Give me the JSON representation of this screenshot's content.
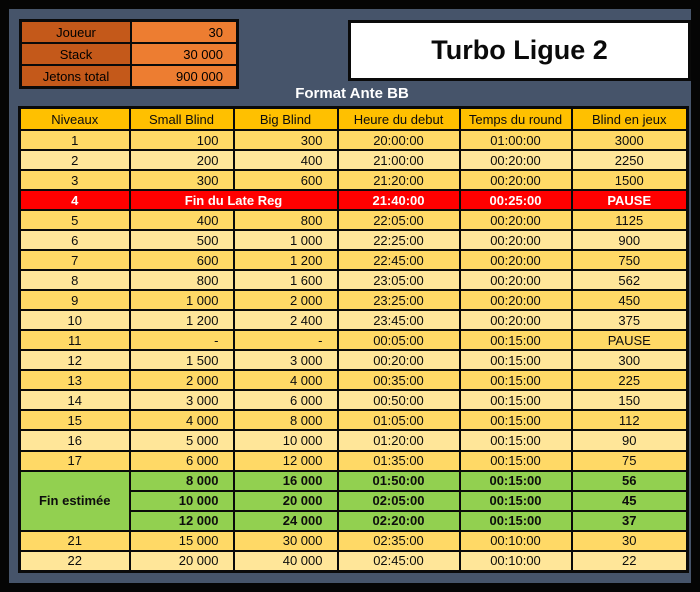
{
  "title": "Turbo Ligue 2",
  "subtitle": "Format Ante BB",
  "colors": {
    "background": "#46546A",
    "border": "#0a0a0a",
    "header_gold": "#FFC000",
    "row_dark": "#FFD966",
    "row_light": "#FFE699",
    "break_red": "#FF0000",
    "estimate_green": "#92D050",
    "info_label_orange": "#C4591A",
    "info_value_orange": "#ED7D31",
    "title_box_bg": "#FFFFFF"
  },
  "info_table": {
    "rows": [
      {
        "label": "Joueur",
        "value": "30"
      },
      {
        "label": "Stack",
        "value": "30 000"
      },
      {
        "label": "Jetons total",
        "value": "900 000"
      }
    ]
  },
  "blinds_table": {
    "headers": [
      "Niveaux",
      "Small Blind",
      "Big Blind",
      "Heure du debut",
      "Temps du round",
      "Blind en jeux"
    ],
    "rows": [
      {
        "level": "1",
        "style": "dark",
        "cells": [
          "100",
          "300",
          "20:00:00",
          "01:00:00",
          "3000"
        ]
      },
      {
        "level": "2",
        "style": "light",
        "cells": [
          "200",
          "400",
          "21:00:00",
          "00:20:00",
          "2250"
        ]
      },
      {
        "level": "3",
        "style": "dark",
        "cells": [
          "300",
          "600",
          "21:20:00",
          "00:20:00",
          "1500"
        ]
      },
      {
        "level": "4",
        "style": "break",
        "merged": "Fin du Late Reg",
        "cells": [
          "21:40:00",
          "00:25:00",
          "PAUSE"
        ]
      },
      {
        "level": "5",
        "style": "dark",
        "cells": [
          "400",
          "800",
          "22:05:00",
          "00:20:00",
          "1125"
        ]
      },
      {
        "level": "6",
        "style": "light",
        "cells": [
          "500",
          "1 000",
          "22:25:00",
          "00:20:00",
          "900"
        ]
      },
      {
        "level": "7",
        "style": "dark",
        "cells": [
          "600",
          "1 200",
          "22:45:00",
          "00:20:00",
          "750"
        ]
      },
      {
        "level": "8",
        "style": "light",
        "cells": [
          "800",
          "1 600",
          "23:05:00",
          "00:20:00",
          "562"
        ]
      },
      {
        "level": "9",
        "style": "dark",
        "cells": [
          "1 000",
          "2 000",
          "23:25:00",
          "00:20:00",
          "450"
        ]
      },
      {
        "level": "10",
        "style": "light",
        "cells": [
          "1 200",
          "2 400",
          "23:45:00",
          "00:20:00",
          "375"
        ]
      },
      {
        "level": "11",
        "style": "dark",
        "cells": [
          "-",
          "-",
          "00:05:00",
          "00:15:00",
          "PAUSE"
        ]
      },
      {
        "level": "12",
        "style": "light",
        "cells": [
          "1 500",
          "3 000",
          "00:20:00",
          "00:15:00",
          "300"
        ]
      },
      {
        "level": "13",
        "style": "dark",
        "cells": [
          "2 000",
          "4 000",
          "00:35:00",
          "00:15:00",
          "225"
        ]
      },
      {
        "level": "14",
        "style": "light",
        "cells": [
          "3 000",
          "6 000",
          "00:50:00",
          "00:15:00",
          "150"
        ]
      },
      {
        "level": "15",
        "style": "dark",
        "cells": [
          "4 000",
          "8 000",
          "01:05:00",
          "00:15:00",
          "112"
        ]
      },
      {
        "level": "16",
        "style": "light",
        "cells": [
          "5 000",
          "10 000",
          "01:20:00",
          "00:15:00",
          "90"
        ]
      },
      {
        "level": "17",
        "style": "dark",
        "cells": [
          "6 000",
          "12 000",
          "01:35:00",
          "00:15:00",
          "75"
        ]
      },
      {
        "level": "Fin estimée",
        "level_rowspan": 3,
        "style": "estimate",
        "cells": [
          "8 000",
          "16 000",
          "01:50:00",
          "00:15:00",
          "56"
        ]
      },
      {
        "style": "estimate",
        "cells": [
          "10 000",
          "20 000",
          "02:05:00",
          "00:15:00",
          "45"
        ]
      },
      {
        "style": "estimate",
        "cells": [
          "12 000",
          "24 000",
          "02:20:00",
          "00:15:00",
          "37"
        ]
      },
      {
        "level": "21",
        "style": "dark",
        "cells": [
          "15 000",
          "30 000",
          "02:35:00",
          "00:10:00",
          "30"
        ]
      },
      {
        "level": "22",
        "style": "light",
        "cells": [
          "20 000",
          "40 000",
          "02:45:00",
          "00:10:00",
          "22"
        ]
      }
    ]
  }
}
